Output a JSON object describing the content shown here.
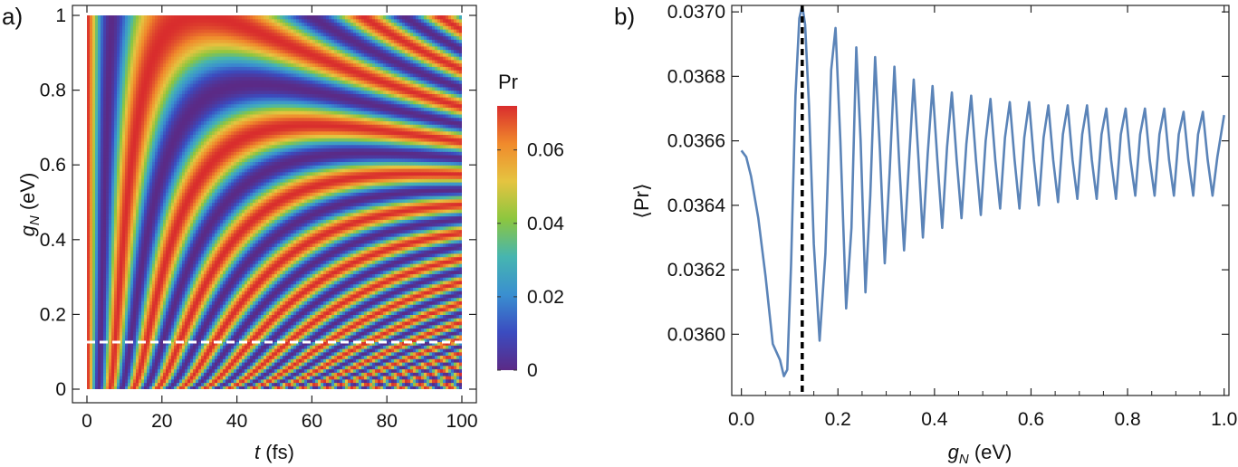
{
  "chart_data": [
    {
      "panel_label": "a)",
      "type": "heatmap",
      "xlabel_var": "t",
      "xlabel_unit": " (fs)",
      "ylabel_var": "g",
      "ylabel_sub": "N",
      "ylabel_unit": " (eV)",
      "xlim": [
        0,
        100
      ],
      "ylim": [
        0,
        1
      ],
      "xticks": [
        "0",
        "20",
        "40",
        "60",
        "80",
        "100"
      ],
      "xtick_values": [
        0,
        20,
        40,
        60,
        80,
        100
      ],
      "yticks": [
        "0",
        "0.2",
        "0.4",
        "0.6",
        "0.8",
        "1"
      ],
      "ytick_values": [
        0,
        0.2,
        0.4,
        0.6,
        0.8,
        1
      ],
      "colorbar": {
        "title": "Pr",
        "range": [
          0,
          0.072
        ],
        "ticks": [
          "0",
          "0.02",
          "0.04",
          "0.06"
        ],
        "tick_values": [
          0,
          0.02,
          0.04,
          0.06
        ],
        "colors": [
          "#5b2a86",
          "#3b4cc0",
          "#3a8fd0",
          "#46b5b0",
          "#8cc63f",
          "#e5c440",
          "#f08a2c",
          "#d92d2d"
        ]
      },
      "reference_line": {
        "orientation": "horizontal",
        "y": 0.126,
        "color": "#ffffff",
        "style": "dashed"
      }
    },
    {
      "panel_label": "b)",
      "type": "line",
      "xlabel_var": "g",
      "xlabel_sub": "N",
      "xlabel_unit": " (eV)",
      "ylabel": "⟨Pr⟩",
      "xlim": [
        -0.02,
        1.01
      ],
      "ylim": [
        0.03581,
        0.03702
      ],
      "xticks": [
        "0.0",
        "0.2",
        "0.4",
        "0.6",
        "0.8",
        "1.0"
      ],
      "xtick_values": [
        0,
        0.2,
        0.4,
        0.6,
        0.8,
        1.0
      ],
      "yticks": [
        "0.0360",
        "0.0362",
        "0.0364",
        "0.0366",
        "0.0368",
        "0.0370"
      ],
      "ytick_values": [
        0.036,
        0.0362,
        0.0364,
        0.0366,
        0.0368,
        0.037
      ],
      "line_color": "#5b84b8",
      "reference_line": {
        "orientation": "vertical",
        "x": 0.126,
        "color": "#000000",
        "style": "dashed"
      },
      "series": [
        {
          "x": [
            0.0,
            0.01,
            0.02,
            0.035,
            0.05,
            0.065,
            0.08,
            0.088,
            0.095,
            0.103,
            0.112,
            0.12,
            0.126,
            0.132,
            0.14,
            0.15,
            0.162,
            0.174,
            0.186,
            0.195,
            0.205,
            0.217,
            0.228,
            0.238,
            0.247,
            0.257,
            0.267,
            0.277,
            0.287,
            0.297,
            0.307,
            0.317,
            0.327,
            0.337,
            0.347,
            0.357,
            0.367,
            0.376,
            0.386,
            0.396,
            0.406,
            0.416,
            0.426,
            0.436,
            0.446,
            0.456,
            0.466,
            0.476,
            0.486,
            0.496,
            0.506,
            0.516,
            0.526,
            0.536,
            0.546,
            0.556,
            0.566,
            0.576,
            0.586,
            0.596,
            0.606,
            0.616,
            0.626,
            0.636,
            0.646,
            0.656,
            0.666,
            0.676,
            0.686,
            0.696,
            0.706,
            0.716,
            0.726,
            0.736,
            0.746,
            0.756,
            0.766,
            0.776,
            0.786,
            0.796,
            0.806,
            0.816,
            0.826,
            0.836,
            0.846,
            0.856,
            0.866,
            0.876,
            0.886,
            0.896,
            0.906,
            0.916,
            0.926,
            0.936,
            0.946,
            0.956,
            0.966,
            0.976,
            0.986,
            1.0
          ],
          "y": [
            0.03657,
            0.03655,
            0.03649,
            0.03636,
            0.03618,
            0.03597,
            0.03592,
            0.03587,
            0.03589,
            0.03622,
            0.03674,
            0.03698,
            0.03702,
            0.03696,
            0.03671,
            0.03628,
            0.03598,
            0.03625,
            0.03682,
            0.03695,
            0.0366,
            0.03608,
            0.03633,
            0.03689,
            0.0366,
            0.03613,
            0.03643,
            0.03686,
            0.03657,
            0.03622,
            0.0365,
            0.03683,
            0.03653,
            0.03626,
            0.03653,
            0.03679,
            0.03654,
            0.0363,
            0.03656,
            0.03677,
            0.03654,
            0.03633,
            0.03658,
            0.03675,
            0.03654,
            0.03636,
            0.03659,
            0.03674,
            0.03654,
            0.03637,
            0.0366,
            0.03673,
            0.03654,
            0.03639,
            0.03661,
            0.03672,
            0.03654,
            0.03639,
            0.03661,
            0.03672,
            0.03654,
            0.0364,
            0.03661,
            0.03671,
            0.03654,
            0.03641,
            0.03662,
            0.03671,
            0.03654,
            0.03642,
            0.03662,
            0.03671,
            0.03654,
            0.03642,
            0.03662,
            0.0367,
            0.03654,
            0.03642,
            0.03662,
            0.0367,
            0.03654,
            0.03643,
            0.03662,
            0.0367,
            0.03654,
            0.03643,
            0.03662,
            0.0367,
            0.03654,
            0.03643,
            0.03662,
            0.03669,
            0.03654,
            0.03643,
            0.03662,
            0.03669,
            0.03654,
            0.03643,
            0.03655,
            0.03668
          ]
        }
      ]
    }
  ]
}
